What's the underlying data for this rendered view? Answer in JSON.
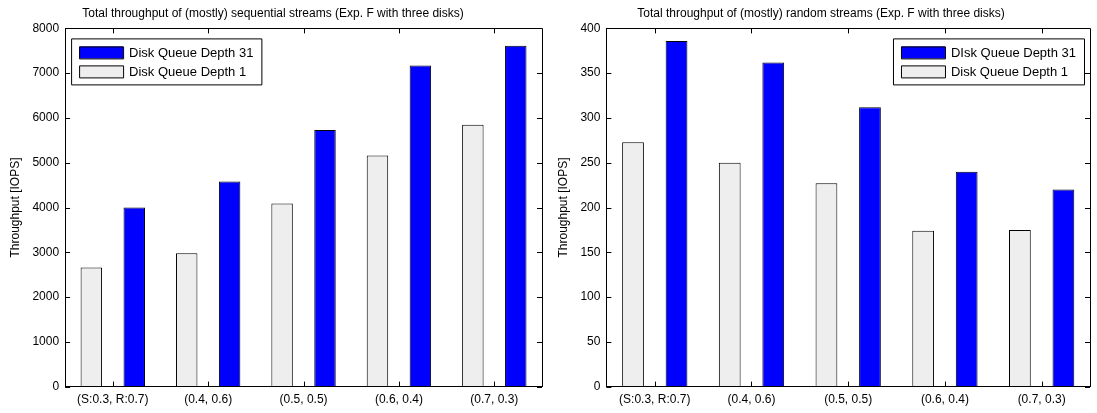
{
  "chart_data": [
    {
      "type": "bar",
      "title": "Total throughput of (mostly) sequential streams (Exp. F with three disks)",
      "ylabel": "Throughput [IOPS]",
      "categories": [
        "(S:0.3, R:0.7)",
        "(0.4, 0.6)",
        "(0.5, 0.5)",
        "(0.6, 0.4)",
        "(0.7, 0.3)"
      ],
      "series": [
        {
          "name": "Disk Queue Depth 1",
          "color": "#eeeeee",
          "values": [
            2660,
            2980,
            4090,
            5160,
            5850
          ]
        },
        {
          "name": "Disk Queue Depth 31",
          "color": "#0000ff",
          "values": [
            4000,
            4580,
            5730,
            7170,
            7610
          ]
        }
      ],
      "ylim": [
        0,
        8000
      ],
      "yticks": [
        0,
        1000,
        2000,
        3000,
        4000,
        5000,
        6000,
        7000,
        8000
      ],
      "grid": false,
      "legend": "top left"
    },
    {
      "type": "bar",
      "title": "Total throughput of (mostly) random streams (Exp. F with three disks)",
      "ylabel": "Throughput [IOPS]",
      "categories": [
        "(S:0.3, R:0.7)",
        "(0.4, 0.6)",
        "(0.5, 0.5)",
        "(0.6, 0.4)",
        "(0.7, 0.3)"
      ],
      "series": [
        {
          "name": "Disk Queue Depth 1",
          "color": "#eeeeee",
          "values": [
            273,
            250,
            227,
            174,
            175
          ]
        },
        {
          "name": "DIsk Queue Depth 31",
          "color": "#0000ff",
          "values": [
            386,
            362,
            312,
            240,
            220
          ]
        }
      ],
      "ylim": [
        0,
        400
      ],
      "yticks": [
        0,
        50,
        100,
        150,
        200,
        250,
        300,
        350,
        400
      ],
      "grid": false,
      "legend": "top right"
    }
  ]
}
